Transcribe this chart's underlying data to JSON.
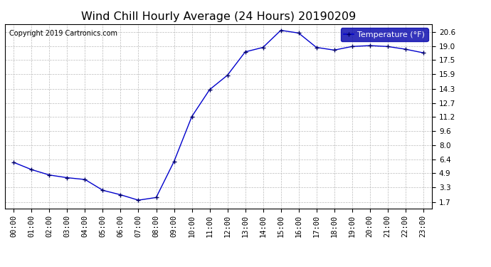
{
  "title": "Wind Chill Hourly Average (24 Hours) 20190209",
  "copyright": "Copyright 2019 Cartronics.com",
  "legend_label": "Temperature (°F)",
  "x_labels": [
    "00:00",
    "01:00",
    "02:00",
    "03:00",
    "04:00",
    "05:00",
    "06:00",
    "07:00",
    "08:00",
    "09:00",
    "10:00",
    "11:00",
    "12:00",
    "13:00",
    "14:00",
    "15:00",
    "16:00",
    "17:00",
    "18:00",
    "19:00",
    "20:00",
    "21:00",
    "22:00",
    "23:00"
  ],
  "y_values": [
    6.1,
    5.3,
    4.7,
    4.4,
    4.2,
    3.0,
    2.5,
    1.9,
    2.2,
    6.2,
    11.2,
    14.2,
    15.8,
    18.4,
    18.9,
    20.8,
    20.5,
    18.9,
    18.6,
    19.0,
    19.1,
    19.0,
    18.7,
    18.3
  ],
  "yticks": [
    1.7,
    3.3,
    4.9,
    6.4,
    8.0,
    9.6,
    11.2,
    12.7,
    14.3,
    15.9,
    17.5,
    19.0,
    20.6
  ],
  "ylim": [
    1.0,
    21.5
  ],
  "line_color": "#0000cc",
  "marker": "+",
  "marker_color": "#000066",
  "bg_color": "#ffffff",
  "plot_bg_color": "#ffffff",
  "grid_color": "#bbbbbb",
  "title_fontsize": 11.5,
  "tick_fontsize": 7.5,
  "copyright_fontsize": 7,
  "legend_bg": "#0000aa",
  "legend_fg": "#ffffff",
  "legend_fontsize": 8
}
